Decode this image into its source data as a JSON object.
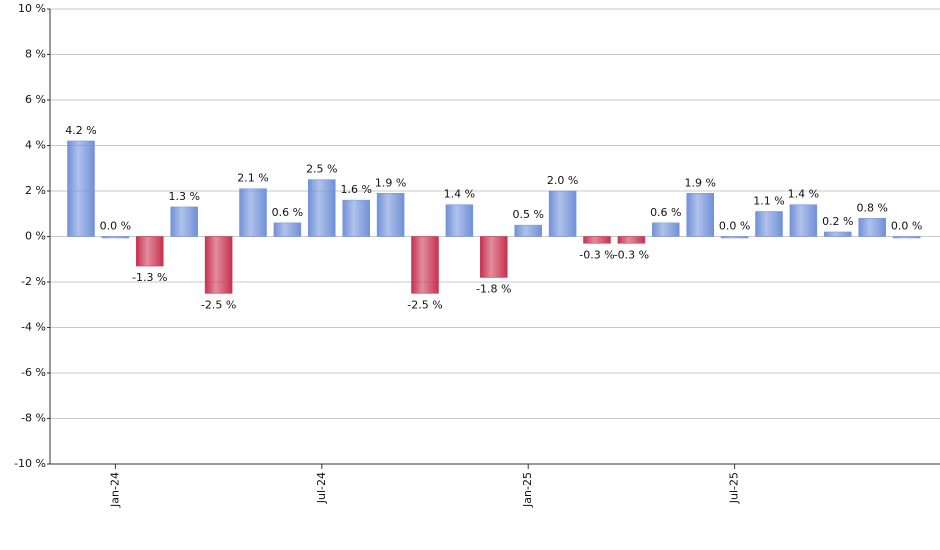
{
  "chart_data": {
    "type": "bar",
    "categories": [
      null,
      "Jan-24",
      null,
      null,
      null,
      null,
      null,
      "Jul-24",
      null,
      null,
      null,
      null,
      null,
      "Jan-25",
      null,
      null,
      null,
      null,
      null,
      "Jul-25",
      null,
      null,
      null,
      null,
      null
    ],
    "values": [
      4.2,
      0.0,
      -1.3,
      1.3,
      -2.5,
      2.1,
      0.6,
      2.5,
      1.6,
      1.9,
      -2.5,
      1.4,
      -1.8,
      0.5,
      2.0,
      -0.3,
      -0.3,
      0.6,
      1.9,
      0.0,
      1.1,
      1.4,
      0.2,
      0.8,
      0.0
    ],
    "value_labels": [
      "4.2 %",
      "0.0 %",
      "-1.3 %",
      "1.3 %",
      "-2.5 %",
      "2.1 %",
      "0.6 %",
      "2.5 %",
      "1.6 %",
      "1.9 %",
      "-2.5 %",
      "1.4 %",
      "-1.8 %",
      "0.5 %",
      "2.0 %",
      "-0.3 %",
      "-0.3 %",
      "0.6 %",
      "1.9 %",
      "0.0 %",
      "1.1 %",
      "1.4 %",
      "0.2 %",
      "0.8 %",
      "0.0 %"
    ],
    "positive_color": "#7090d8",
    "negative_color": "#c8304f",
    "ylim": [
      -10,
      10
    ],
    "yticks": [
      {
        "value": -10,
        "label": "-10 %"
      },
      {
        "value": -8,
        "label": "-8 %"
      },
      {
        "value": -6,
        "label": "-6 %"
      },
      {
        "value": -4,
        "label": "-4 %"
      },
      {
        "value": -2,
        "label": "-2 %"
      },
      {
        "value": 0,
        "label": "0 %"
      },
      {
        "value": 2,
        "label": "2 %"
      },
      {
        "value": 4,
        "label": "4 %"
      },
      {
        "value": 6,
        "label": "6 %"
      },
      {
        "value": 8,
        "label": "8 %"
      },
      {
        "value": 10,
        "label": "10 %"
      }
    ],
    "grid": true
  }
}
